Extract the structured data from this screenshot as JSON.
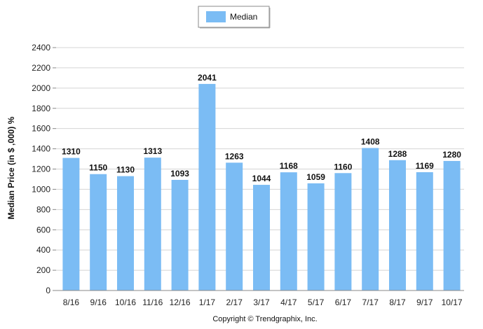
{
  "legend": {
    "label": "Median"
  },
  "copyright": "Copyright © Trendgraphix, Inc.",
  "chart_data": {
    "type": "bar",
    "categories": [
      "8/16",
      "9/16",
      "10/16",
      "11/16",
      "12/16",
      "1/17",
      "2/17",
      "3/17",
      "4/17",
      "5/17",
      "6/17",
      "7/17",
      "8/17",
      "9/17",
      "10/17"
    ],
    "series": [
      {
        "name": "Median",
        "color": "#7bbcf4",
        "values": [
          1310,
          1150,
          1130,
          1313,
          1093,
          2041,
          1263,
          1044,
          1168,
          1059,
          1160,
          1408,
          1288,
          1169,
          1280
        ]
      }
    ],
    "ylabel": "Median Price (in $ ,000) %",
    "ylim": [
      0,
      2400
    ],
    "yticks": [
      0,
      200,
      400,
      600,
      800,
      1000,
      1200,
      1400,
      1600,
      1800,
      2000,
      2200,
      2400
    ],
    "grid": true,
    "legend_position": "top-center",
    "gridline_color": "#d4d4d4"
  }
}
